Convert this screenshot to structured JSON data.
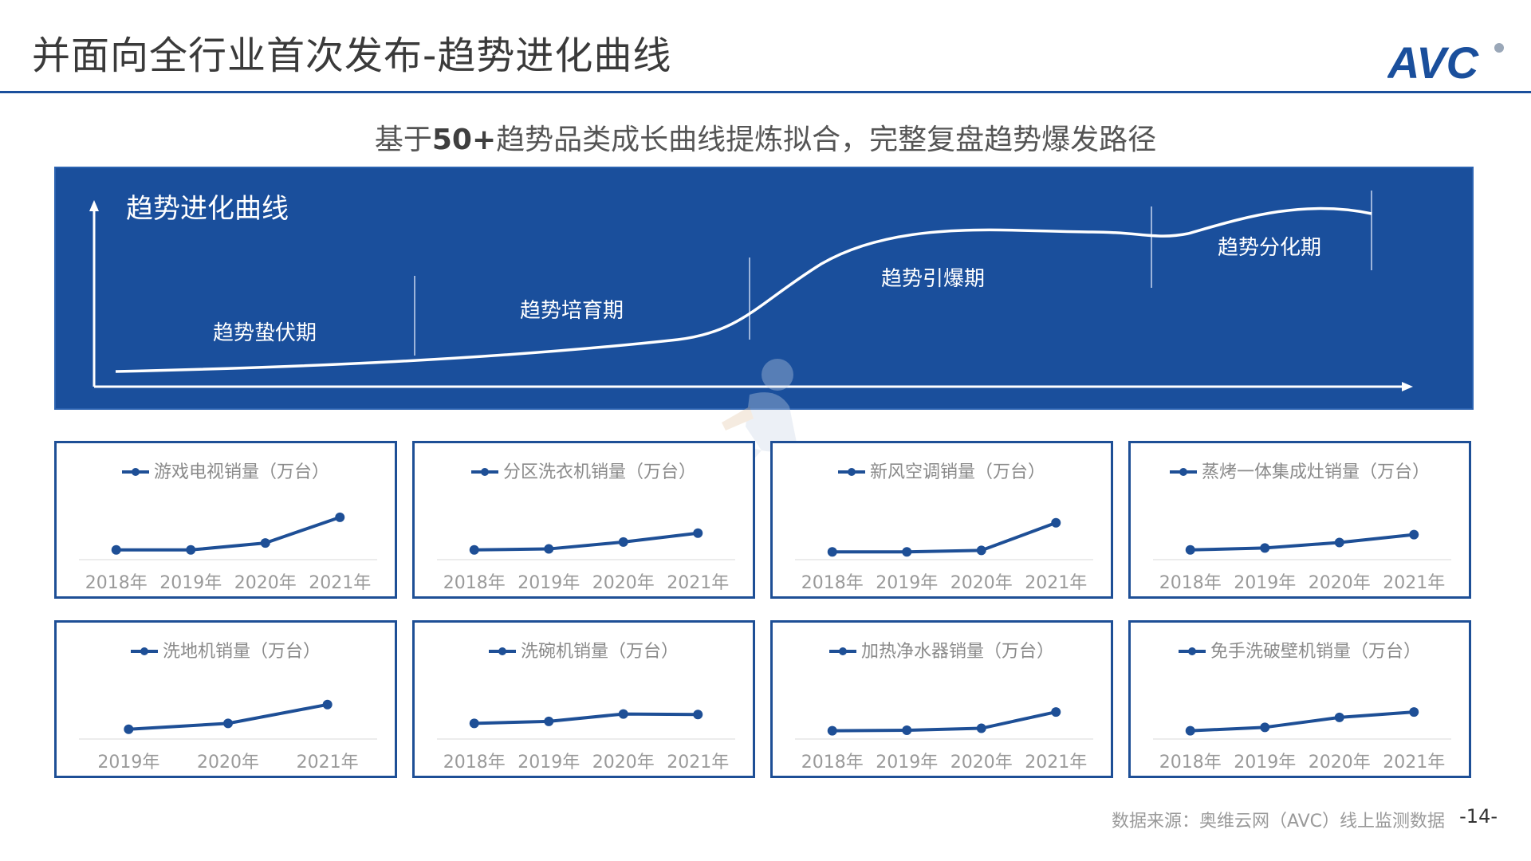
{
  "header": {
    "title": "并面向全行业首次发布-趋势进化曲线",
    "logo_text": "AVC"
  },
  "subtitle": {
    "prefix": "基于",
    "highlight": "50+",
    "rest": "趋势品类成长曲线提炼拟合，完整复盘趋势爆发路径"
  },
  "evolution": {
    "title": "趋势进化曲线",
    "stages": [
      "趋势蛰伏期",
      "趋势培育期",
      "趋势引爆期",
      "趋势分化期"
    ]
  },
  "colors": {
    "brand": "#1a4f9c",
    "line": "#1e4f96",
    "card_border": "#1e4f96"
  },
  "footer": {
    "source": "数据来源：奥维云网（AVC）线上监测数据",
    "page": "-14-"
  },
  "chart_data": [
    {
      "type": "line",
      "title": "",
      "series": [
        {
          "name": "游戏电视销量（万台）",
          "values": [
            1.0,
            1.0,
            2.4,
            7.6
          ]
        }
      ],
      "categories": [
        "2018年",
        "2019年",
        "2020年",
        "2021年"
      ],
      "ylim": [
        0,
        10
      ]
    },
    {
      "type": "line",
      "title": "",
      "series": [
        {
          "name": "分区洗衣机销量（万台）",
          "values": [
            1.0,
            1.2,
            2.6,
            4.4
          ]
        }
      ],
      "categories": [
        "2018年",
        "2019年",
        "2020年",
        "2021年"
      ],
      "ylim": [
        0,
        10
      ]
    },
    {
      "type": "line",
      "title": "",
      "series": [
        {
          "name": "新风空调销量（万台）",
          "values": [
            0.6,
            0.6,
            0.9,
            6.5
          ]
        }
      ],
      "categories": [
        "2018年",
        "2019年",
        "2020年",
        "2021年"
      ],
      "ylim": [
        0,
        10
      ]
    },
    {
      "type": "line",
      "title": "",
      "series": [
        {
          "name": "蒸烤一体集成灶销量（万台）",
          "values": [
            1.0,
            1.4,
            2.5,
            4.1
          ]
        }
      ],
      "categories": [
        "2018年",
        "2019年",
        "2020年",
        "2021年"
      ],
      "ylim": [
        0,
        10
      ]
    },
    {
      "type": "line",
      "title": "",
      "series": [
        {
          "name": "洗地机销量（万台）",
          "values": [
            1.0,
            2.2,
            6.0
          ]
        }
      ],
      "categories": [
        "2019年",
        "2020年",
        "2021年"
      ],
      "ylim": [
        0,
        10
      ]
    },
    {
      "type": "line",
      "title": "",
      "series": [
        {
          "name": "洗碗机销量（万台）",
          "values": [
            2.2,
            2.6,
            4.1,
            4.0
          ]
        }
      ],
      "categories": [
        "2018年",
        "2019年",
        "2020年",
        "2021年"
      ],
      "ylim": [
        0,
        10
      ]
    },
    {
      "type": "line",
      "title": "",
      "series": [
        {
          "name": "加热净水器销量（万台）",
          "values": [
            0.7,
            0.8,
            1.2,
            4.5
          ]
        }
      ],
      "categories": [
        "2018年",
        "2019年",
        "2020年",
        "2021年"
      ],
      "ylim": [
        0,
        10
      ]
    },
    {
      "type": "line",
      "title": "",
      "series": [
        {
          "name": "免手洗破壁机销量（万台）",
          "values": [
            0.7,
            1.4,
            3.4,
            4.5
          ]
        }
      ],
      "categories": [
        "2018年",
        "2019年",
        "2020年",
        "2021年"
      ],
      "ylim": [
        0,
        10
      ]
    }
  ]
}
